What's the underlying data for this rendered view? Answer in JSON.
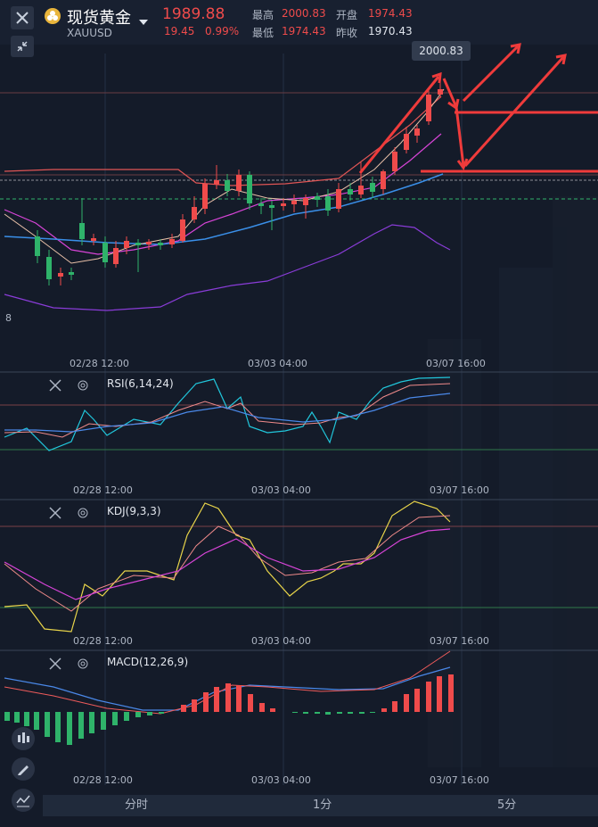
{
  "header": {
    "name": "现货黄金",
    "code": "XAUUSD",
    "price": "1989.88",
    "change": "19.45",
    "change_pct": "0.99%",
    "high_label": "最高",
    "high": "2000.83",
    "open_label": "开盘",
    "open": "1974.43",
    "low_label": "最低",
    "low": "1974.43",
    "prev_close_label": "昨收",
    "prev_close": "1970.43"
  },
  "main_chart": {
    "high_tag": "2000.83",
    "edge_digit": "8",
    "time_labels": [
      "02/28 12:00",
      "03/03 04:00",
      "03/07 16:00"
    ]
  },
  "rsi": {
    "name": "RSI(6,14,24)",
    "time_labels": [
      "02/28 12:00",
      "03/03 04:00",
      "03/07 16:00"
    ]
  },
  "kdj": {
    "name": "KDJ(9,3,3)",
    "time_labels": [
      "02/28 12:00",
      "03/03 04:00",
      "03/07 16:00"
    ]
  },
  "macd": {
    "name": "MACD(12,26,9)",
    "time_labels": [
      "02/28 12:00",
      "03/03 04:00",
      "03/07 16:00"
    ]
  },
  "tabs": [
    "分时",
    "1分",
    "5分"
  ],
  "colors": {
    "up": "#ef4b4b",
    "down": "#2fb36a",
    "bg": "#141b29"
  },
  "icons": [
    "close-icon",
    "collapse-icon",
    "gold-coin-icon",
    "dropdown-caret-icon",
    "settings-icon",
    "candlestick-icon",
    "pencil-icon",
    "indicator-icon"
  ]
}
